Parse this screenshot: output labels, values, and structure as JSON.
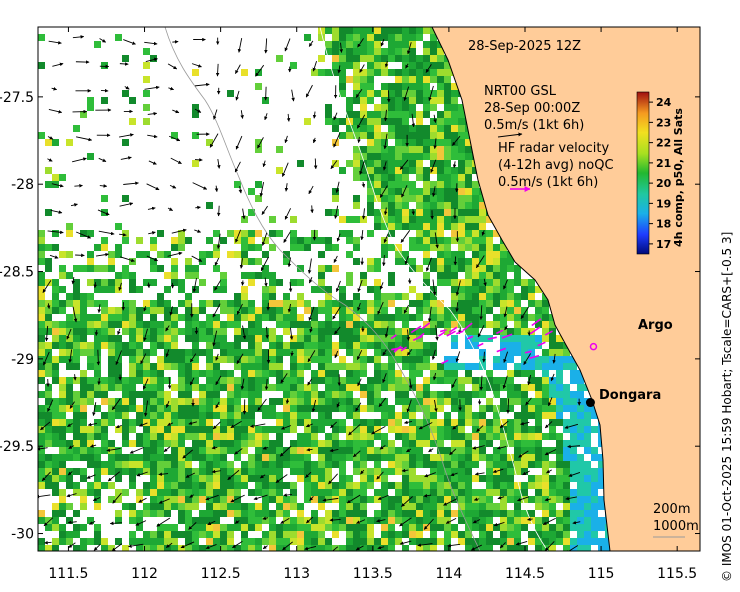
{
  "timestamp": "28-Sep-2025 12Z",
  "model_legend": {
    "line1": "NRT00 GSL",
    "line2": "28-Sep 00:00Z",
    "scale": "0.5m/s (1kt 6h)"
  },
  "radar_legend": {
    "line1": "HF radar velocity",
    "line2": "(4-12h avg) noQC",
    "scale": "0.5m/s (1kt 6h)"
  },
  "places": [
    {
      "name": "Argo",
      "lon": 114.95,
      "lat": -28.93,
      "marker": "argo-circle"
    },
    {
      "name": "Dongara",
      "lon": 114.93,
      "lat": -29.25,
      "marker": "dot"
    }
  ],
  "isobaths": [
    "200m",
    "1000m"
  ],
  "colorbar": {
    "title": "4h comp, p50, All Sats",
    "ticks": [
      "24",
      "23",
      "22",
      "21",
      "20",
      "19",
      "18",
      "17"
    ],
    "min": 16.5,
    "max": 24.5
  },
  "x_ticks": [
    "111.5",
    "112",
    "112.5",
    "113",
    "113.5",
    "114",
    "114.5",
    "115",
    "115.5"
  ],
  "y_ticks": [
    "-27.5",
    "-28",
    "-28.5",
    "-29",
    "-29.5",
    "-30"
  ],
  "axes": {
    "lon_min": 111.3,
    "lon_max": 115.65,
    "lat_min": -30.1,
    "lat_max": -27.1
  },
  "credit": "© IMOS 01-Oct-2025 15:59 Hobart; Tscale=CARS+[-0.5 3]",
  "colors": {
    "land": "#ffcc99",
    "radar_arrow": "#ee00ee",
    "argo": "#ee00ee"
  }
}
